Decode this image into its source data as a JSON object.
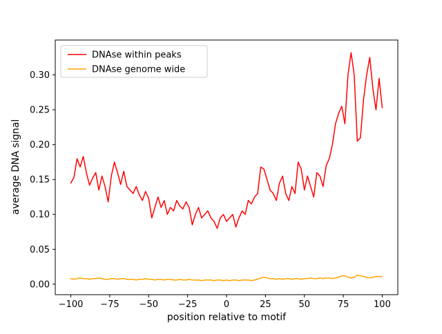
{
  "chart_data": {
    "type": "line",
    "title": "",
    "xlabel": "position relative to motif",
    "ylabel": "average DNA signal",
    "xlim": [
      -110,
      110
    ],
    "ylim": [
      -0.015,
      0.35
    ],
    "grid": false,
    "legend_position": "upper left",
    "xticks": [
      -100,
      -75,
      -50,
      -25,
      0,
      25,
      50,
      75,
      100
    ],
    "xtick_labels": [
      "−100",
      "−75",
      "−50",
      "−25",
      "0",
      "25",
      "50",
      "75",
      "100"
    ],
    "yticks": [
      0.0,
      0.05,
      0.1,
      0.15,
      0.2,
      0.25,
      0.3
    ],
    "ytick_labels": [
      "0.00",
      "0.05",
      "0.10",
      "0.15",
      "0.20",
      "0.25",
      "0.30"
    ],
    "x": [
      -100,
      -98,
      -96,
      -94,
      -92,
      -90,
      -88,
      -86,
      -84,
      -82,
      -80,
      -78,
      -76,
      -74,
      -72,
      -70,
      -68,
      -66,
      -64,
      -62,
      -60,
      -58,
      -56,
      -54,
      -52,
      -50,
      -48,
      -46,
      -44,
      -42,
      -40,
      -38,
      -36,
      -34,
      -32,
      -30,
      -28,
      -26,
      -24,
      -22,
      -20,
      -18,
      -16,
      -14,
      -12,
      -10,
      -8,
      -6,
      -4,
      -2,
      0,
      2,
      4,
      6,
      8,
      10,
      12,
      14,
      16,
      18,
      20,
      22,
      24,
      26,
      28,
      30,
      32,
      34,
      36,
      38,
      40,
      42,
      44,
      46,
      48,
      50,
      52,
      54,
      56,
      58,
      60,
      62,
      64,
      66,
      68,
      70,
      72,
      74,
      76,
      78,
      80,
      82,
      84,
      86,
      88,
      90,
      92,
      94,
      96,
      98,
      100
    ],
    "series": [
      {
        "name": "DNAse within peaks",
        "color": "#ff0000",
        "values": [
          0.145,
          0.153,
          0.18,
          0.168,
          0.183,
          0.16,
          0.142,
          0.152,
          0.16,
          0.135,
          0.155,
          0.14,
          0.118,
          0.155,
          0.175,
          0.16,
          0.143,
          0.162,
          0.14,
          0.135,
          0.13,
          0.14,
          0.128,
          0.12,
          0.133,
          0.123,
          0.095,
          0.11,
          0.125,
          0.11,
          0.12,
          0.1,
          0.11,
          0.105,
          0.12,
          0.112,
          0.108,
          0.118,
          0.11,
          0.085,
          0.1,
          0.11,
          0.095,
          0.1,
          0.105,
          0.095,
          0.09,
          0.08,
          0.095,
          0.1,
          0.09,
          0.095,
          0.1,
          0.082,
          0.095,
          0.105,
          0.1,
          0.12,
          0.115,
          0.125,
          0.13,
          0.168,
          0.165,
          0.15,
          0.135,
          0.13,
          0.12,
          0.145,
          0.155,
          0.13,
          0.12,
          0.14,
          0.13,
          0.175,
          0.165,
          0.135,
          0.155,
          0.14,
          0.125,
          0.16,
          0.155,
          0.14,
          0.17,
          0.18,
          0.2,
          0.23,
          0.245,
          0.255,
          0.23,
          0.3,
          0.332,
          0.3,
          0.205,
          0.21,
          0.265,
          0.3,
          0.325,
          0.28,
          0.25,
          0.295,
          0.253
        ]
      },
      {
        "name": "DNAse genome wide",
        "color": "#ffa500",
        "values": [
          0.008,
          0.007,
          0.008,
          0.009,
          0.008,
          0.008,
          0.007,
          0.008,
          0.008,
          0.009,
          0.008,
          0.007,
          0.007,
          0.008,
          0.008,
          0.007,
          0.008,
          0.008,
          0.007,
          0.007,
          0.007,
          0.006,
          0.007,
          0.007,
          0.008,
          0.007,
          0.007,
          0.006,
          0.007,
          0.007,
          0.006,
          0.007,
          0.007,
          0.006,
          0.006,
          0.007,
          0.006,
          0.006,
          0.007,
          0.006,
          0.006,
          0.006,
          0.005,
          0.006,
          0.006,
          0.006,
          0.005,
          0.006,
          0.006,
          0.005,
          0.006,
          0.005,
          0.006,
          0.006,
          0.005,
          0.006,
          0.006,
          0.006,
          0.005,
          0.006,
          0.007,
          0.009,
          0.01,
          0.009,
          0.008,
          0.008,
          0.007,
          0.008,
          0.007,
          0.008,
          0.008,
          0.007,
          0.008,
          0.008,
          0.007,
          0.008,
          0.008,
          0.009,
          0.008,
          0.008,
          0.009,
          0.008,
          0.009,
          0.009,
          0.008,
          0.009,
          0.01,
          0.012,
          0.012,
          0.01,
          0.009,
          0.01,
          0.013,
          0.012,
          0.011,
          0.01,
          0.009,
          0.01,
          0.011,
          0.011,
          0.011
        ]
      }
    ]
  }
}
